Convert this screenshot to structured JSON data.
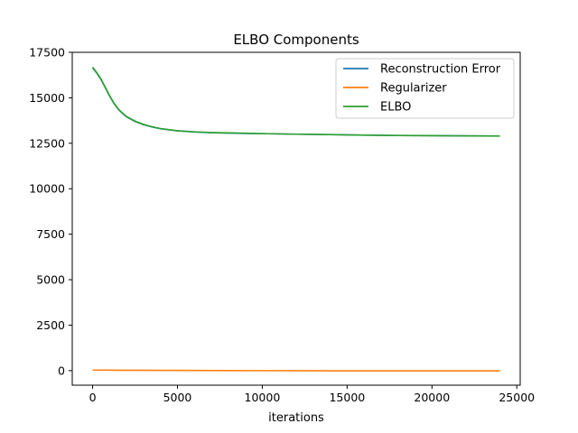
{
  "chart_data": {
    "type": "line",
    "title": "ELBO Components",
    "xlabel": "iterations",
    "ylabel": "",
    "xlim": [
      -1200,
      25200
    ],
    "ylim": [
      -800,
      17500
    ],
    "xticks": [
      0,
      5000,
      10000,
      15000,
      20000,
      25000
    ],
    "yticks": [
      0,
      2500,
      5000,
      7500,
      10000,
      12500,
      15000,
      17500
    ],
    "grid": false,
    "legend_position": "top-right",
    "series": [
      {
        "name": "Reconstruction Error",
        "color": "#1f77b4",
        "x": [
          0,
          250,
          500,
          750,
          1000,
          1250,
          1500,
          1750,
          2000,
          2500,
          3000,
          3500,
          4000,
          5000,
          6000,
          7000,
          8000,
          9000,
          10000,
          12000,
          14000,
          16000,
          18000,
          20000,
          22000,
          24000
        ],
        "y": [
          16650,
          16350,
          16000,
          15550,
          15100,
          14700,
          14380,
          14150,
          13950,
          13700,
          13520,
          13400,
          13300,
          13180,
          13120,
          13080,
          13060,
          13040,
          13030,
          13000,
          12980,
          12950,
          12930,
          12920,
          12910,
          12900
        ]
      },
      {
        "name": "Regularizer",
        "color": "#ff7f0e",
        "x": [
          0,
          1000,
          2000,
          4000,
          6000,
          8000,
          10000,
          12000,
          14000,
          16000,
          18000,
          20000,
          22000,
          24000
        ],
        "y": [
          30,
          25,
          20,
          15,
          10,
          5,
          0,
          -5,
          -8,
          -10,
          -10,
          -10,
          -10,
          -10
        ]
      },
      {
        "name": "ELBO",
        "color": "#2ca02c",
        "x": [
          0,
          250,
          500,
          750,
          1000,
          1250,
          1500,
          1750,
          2000,
          2500,
          3000,
          3500,
          4000,
          5000,
          6000,
          7000,
          8000,
          9000,
          10000,
          12000,
          14000,
          16000,
          18000,
          20000,
          22000,
          24000
        ],
        "y": [
          16680,
          16380,
          16020,
          15570,
          15120,
          14720,
          14400,
          14170,
          13970,
          13720,
          13540,
          13410,
          13310,
          13190,
          13130,
          13090,
          13070,
          13050,
          13030,
          13000,
          12975,
          12945,
          12925,
          12915,
          12905,
          12895
        ]
      }
    ]
  }
}
